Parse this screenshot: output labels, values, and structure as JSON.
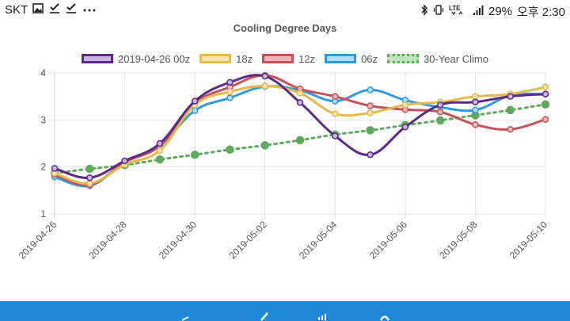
{
  "status_bar": {
    "carrier": "SKT",
    "left_icons": [
      "image-icon",
      "check-icon",
      "check-icon",
      "more-dots-icon"
    ],
    "right_icons": [
      "bluetooth-icon",
      "vibrate-icon",
      "lte-icon",
      "signal-icon"
    ],
    "lte_label": "LTE",
    "battery": "29%",
    "clock": "오후 2:30"
  },
  "chart_data": {
    "type": "line",
    "title": "Cooling Degree Days",
    "xlabel": "",
    "ylabel": "",
    "x": [
      "2019-04-26",
      "2019-04-27",
      "2019-04-28",
      "2019-04-29",
      "2019-04-30",
      "2019-05-01",
      "2019-05-02",
      "2019-05-03",
      "2019-05-04",
      "2019-05-05",
      "2019-05-06",
      "2019-05-07",
      "2019-05-08",
      "2019-05-09",
      "2019-05-10"
    ],
    "x_tick_labels": [
      "2019-04-26",
      "2019-04-28",
      "2019-04-30",
      "2019-05-02",
      "2019-05-04",
      "2019-05-06",
      "2019-05-08",
      "2019-05-10"
    ],
    "y_ticks": [
      1,
      2,
      3,
      4
    ],
    "ylim": [
      1,
      4
    ],
    "grid": true,
    "legend_position": "top",
    "series": [
      {
        "name": "2019-04-26 00z",
        "color": "#5b2a86",
        "fill": "#c8b4e0",
        "dashed": false,
        "values": [
          1.97,
          1.77,
          2.13,
          2.5,
          3.4,
          3.8,
          3.93,
          3.37,
          2.66,
          2.26,
          2.85,
          3.32,
          3.38,
          3.5,
          3.55
        ]
      },
      {
        "name": "18z",
        "color": "#e5b94c",
        "fill": "#f6e3b4",
        "dashed": false,
        "values": [
          1.87,
          1.65,
          2.05,
          2.35,
          3.32,
          3.6,
          3.72,
          3.57,
          3.13,
          3.15,
          3.32,
          3.38,
          3.5,
          3.55,
          3.7
        ]
      },
      {
        "name": "12z",
        "color": "#c65258",
        "fill": "#ecb8bb",
        "dashed": false,
        "values": [
          1.84,
          1.62,
          2.1,
          2.45,
          3.35,
          3.7,
          3.95,
          3.66,
          3.5,
          3.3,
          3.22,
          3.17,
          2.9,
          2.8,
          3.01
        ]
      },
      {
        "name": "06z",
        "color": "#2e9be0",
        "fill": "#b3dcf6",
        "dashed": false,
        "values": [
          1.79,
          1.6,
          2.1,
          2.45,
          3.2,
          3.47,
          3.71,
          3.63,
          3.4,
          3.64,
          3.42,
          3.27,
          3.21,
          3.52,
          3.55
        ]
      },
      {
        "name": "30-Year Climo",
        "color": "#5ea95c",
        "fill": "#c2e2c0",
        "dashed": true,
        "values": [
          1.87,
          1.96,
          2.04,
          2.16,
          2.26,
          2.37,
          2.46,
          2.57,
          2.69,
          2.78,
          2.89,
          2.99,
          3.1,
          3.21,
          3.33
        ]
      }
    ]
  }
}
